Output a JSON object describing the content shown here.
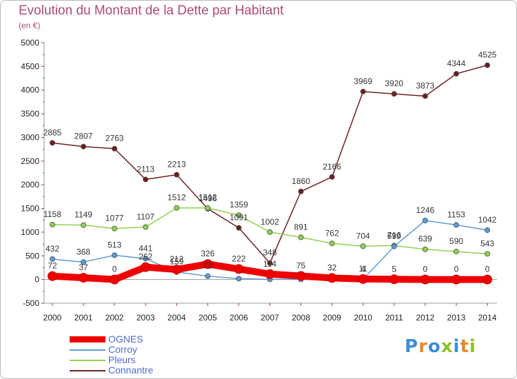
{
  "title": "Evolution du Montant de la Dette par Habitant",
  "unit": "(en €)",
  "logo": {
    "text": "Proxiti",
    "colors": [
      "#3b8fd6",
      "#e8892a",
      "#3b8fd6",
      "#8fbf2e",
      "#3b8fd6",
      "#e8892a",
      "#8fbf2e"
    ]
  },
  "chart_data": {
    "type": "line",
    "x": [
      "2000",
      "2001",
      "2002",
      "2003",
      "2004",
      "2005",
      "2006",
      "2007",
      "2008",
      "2009",
      "2010",
      "2011",
      "2012",
      "2013",
      "2014"
    ],
    "ylim": [
      -500,
      5000
    ],
    "yticks": [
      -500,
      0,
      500,
      1000,
      1500,
      2000,
      2500,
      3000,
      3500,
      4000,
      4500,
      5000
    ],
    "grid": false,
    "legend_position": "bottom-left",
    "series": [
      {
        "name": "OGNES",
        "color": "#ee0000",
        "emphasis": true,
        "values": [
          72,
          37,
          0,
          262,
          212,
          326,
          222,
          114,
          75,
          32,
          11,
          5,
          0,
          0,
          0
        ],
        "labels": [
          "72",
          "37",
          "0",
          "262",
          "212",
          "326",
          "222",
          "114",
          "75",
          "32",
          "11",
          "5",
          "0",
          "0",
          "0"
        ]
      },
      {
        "name": "Corroy",
        "color": "#5b9bd5",
        "values": [
          432,
          368,
          513,
          441,
          159,
          72,
          19,
          4,
          4,
          4,
          4,
          699,
          1246,
          1153,
          1042
        ],
        "labels": [
          "432",
          "368",
          "513",
          "441",
          "159",
          "72",
          "",
          "",
          "",
          "",
          "4",
          "699",
          "1246",
          "1153",
          "1042"
        ]
      },
      {
        "name": "Pleurs",
        "color": "#8fd14f",
        "values": [
          1158,
          1149,
          1077,
          1107,
          1512,
          1512,
          1359,
          1002,
          891,
          762,
          704,
          716,
          639,
          590,
          543
        ],
        "labels": [
          "1158",
          "1149",
          "1077",
          "1107",
          "1512",
          "1512",
          "1359",
          "1002",
          "891",
          "762",
          "704",
          "716",
          "639",
          "590",
          "543"
        ]
      },
      {
        "name": "Connantre",
        "color": "#6b2020",
        "values": [
          2885,
          2807,
          2763,
          2113,
          2213,
          1496,
          1091,
          348,
          1860,
          2166,
          3969,
          3920,
          3873,
          4344,
          4525
        ],
        "labels": [
          "2885",
          "2807",
          "2763",
          "2113",
          "2213",
          "1496",
          "1091",
          "348",
          "1860",
          "2166",
          "3969",
          "3920",
          "3873",
          "4344",
          "4525"
        ]
      }
    ]
  }
}
